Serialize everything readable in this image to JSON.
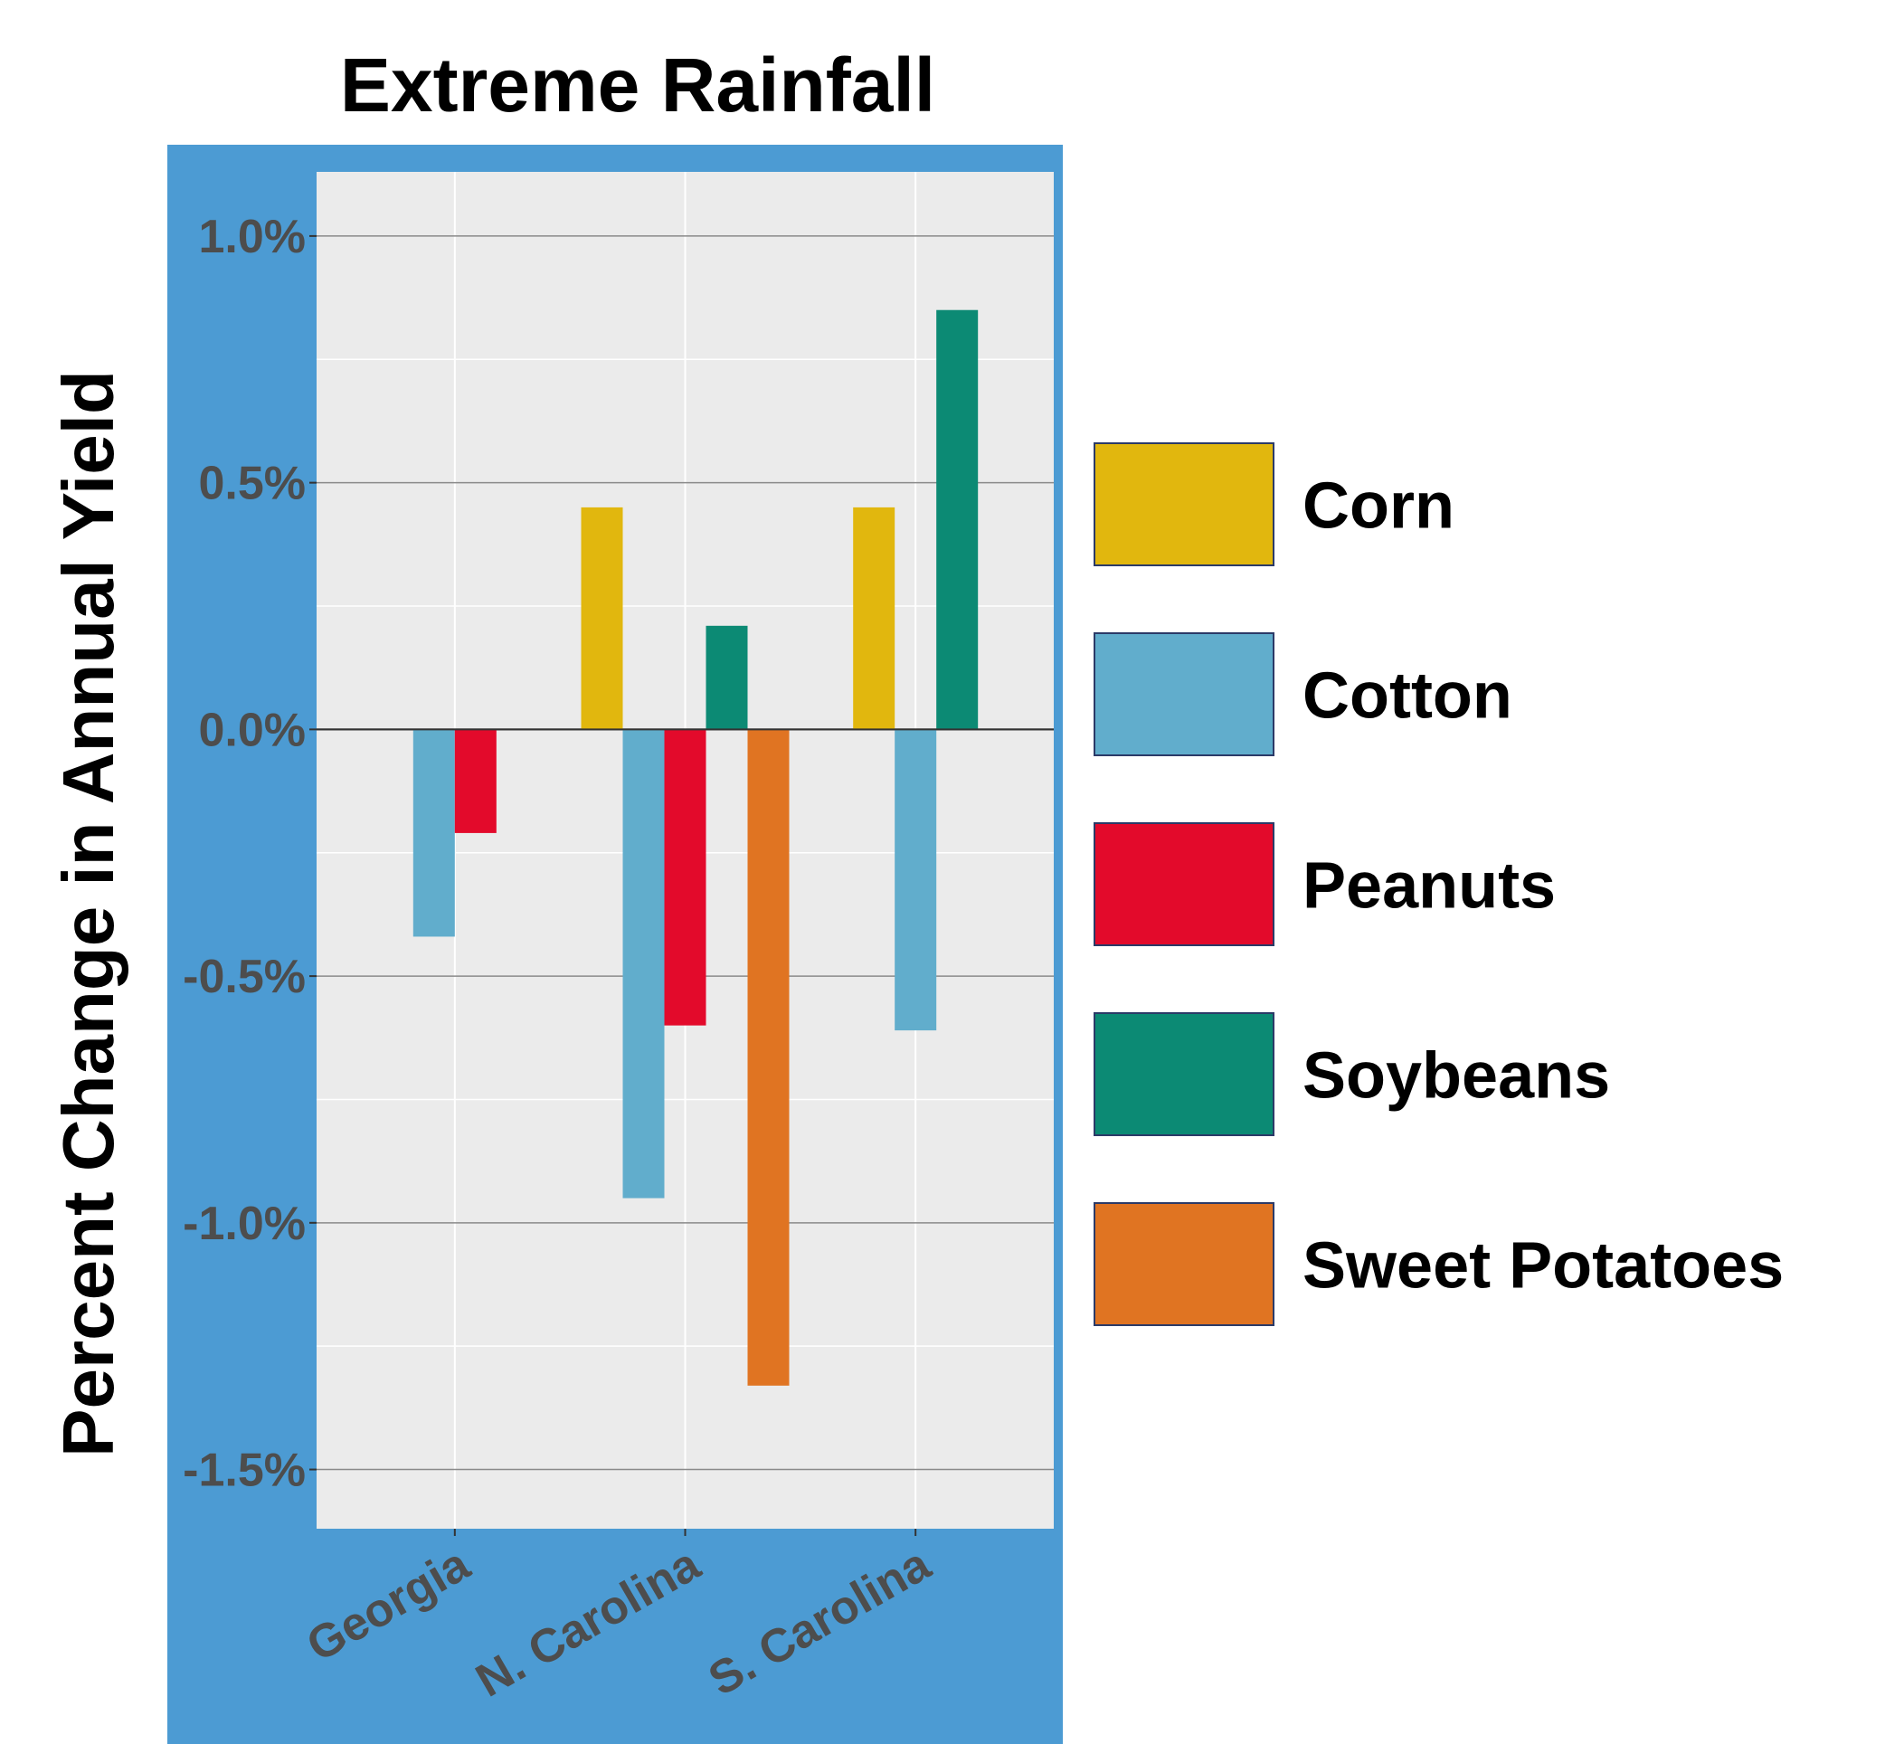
{
  "chart_data": {
    "type": "bar",
    "title": "Extreme Rainfall",
    "ylabel": "Percent Change in Annual Yield",
    "xlabel": "",
    "categories": [
      "Georgia",
      "N. Carolina",
      "S. Carolina"
    ],
    "y_ticks": [
      1.0,
      0.5,
      0.0,
      -0.5,
      -1.0,
      -1.5
    ],
    "y_tick_labels": [
      "1.0%",
      "0.5%",
      "0.0%",
      "-0.5%",
      "-1.0%",
      "-1.5%"
    ],
    "ylim": [
      -1.62,
      1.13
    ],
    "grid": true,
    "legend_position": "right",
    "background_color": "#4c9bd3",
    "panel_color": "#ebebeb",
    "series": [
      {
        "name": "Corn",
        "color": "#e1b70e",
        "values": [
          null,
          0.45,
          0.45
        ]
      },
      {
        "name": "Cotton",
        "color": "#61adcc",
        "values": [
          -0.42,
          -0.95,
          -0.61
        ]
      },
      {
        "name": "Peanuts",
        "color": "#e30a2b",
        "values": [
          -0.21,
          -0.6,
          null
        ]
      },
      {
        "name": "Soybeans",
        "color": "#0c8a74",
        "values": [
          null,
          0.21,
          0.85
        ]
      },
      {
        "name": "Sweet Potatoes",
        "color": "#e07422",
        "values": [
          null,
          -1.33,
          null
        ]
      }
    ]
  }
}
